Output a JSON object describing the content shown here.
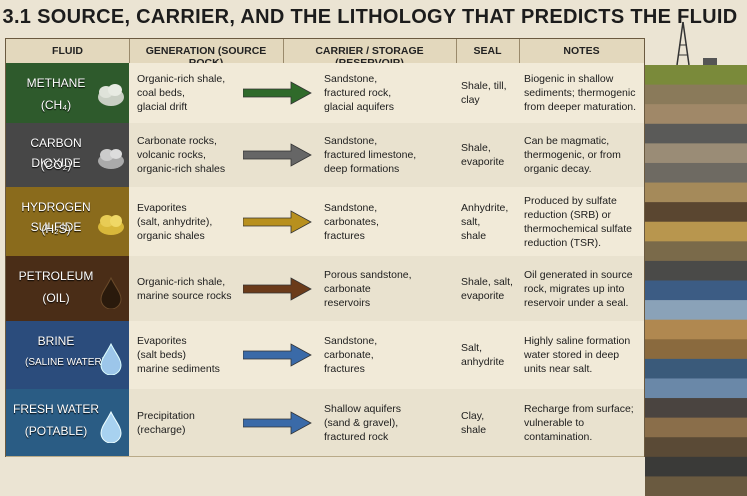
{
  "title": "3.1  SOURCE, CARRIER, AND THE LITHOLOGY THAT PREDICTS THE FLUID",
  "table": {
    "headers": [
      "FLUID",
      "GENERATION (SOURCE ROCK)",
      "CARRIER / STORAGE (RESERVOIR)",
      "SEAL",
      "NOTES"
    ],
    "rows": [
      {
        "fluid": [
          "METHANE",
          "(CH₄)"
        ],
        "generation": [
          "Organic-rich shale,",
          "coal beds,",
          "glacial drift"
        ],
        "carrier": [
          "Sandstone,",
          "fractured rock,",
          "glacial aquifers"
        ],
        "seal": [
          "Shale, till,",
          "clay"
        ],
        "notes": [
          "Biogenic in shallow",
          "sediments; thermogenic",
          "from deeper maturation."
        ]
      },
      {
        "fluid": [
          "CARBON DIOXIDE",
          "(CO₂)"
        ],
        "generation": [
          "Carbonate rocks,",
          "volcanic rocks,",
          "organic-rich shales"
        ],
        "carrier": [
          "Sandstone,",
          "fractured limestone,",
          "deep formations"
        ],
        "seal": [
          "Shale,",
          "evaporite"
        ],
        "notes": [
          "Can be magmatic,",
          "thermogenic, or from",
          "organic decay."
        ]
      },
      {
        "fluid": [
          "HYDROGEN SULFIDE",
          "(H₂S)"
        ],
        "generation": [
          "Evaporites",
          "(salt, anhydrite),",
          "organic shales"
        ],
        "carrier": [
          "Sandstone,",
          "carbonates,",
          "fractures"
        ],
        "seal": [
          "Anhydrite,",
          "salt,",
          "shale"
        ],
        "notes": [
          "Produced by sulfate",
          "reduction (SRB) or",
          "thermochemical sulfate",
          "reduction (TSR)."
        ]
      },
      {
        "fluid": [
          "PETROLEUM",
          "(OIL)"
        ],
        "generation": [
          "Organic-rich shale,",
          "marine source rocks"
        ],
        "carrier": [
          "Porous sandstone,",
          "carbonate",
          "reservoirs"
        ],
        "seal": [
          "Shale, salt,",
          "evaporite"
        ],
        "notes": [
          "Oil generated in source",
          "rock, migrates up into",
          "reservoir under a seal."
        ]
      },
      {
        "fluid": [
          "BRINE",
          "(SALINE WATER)"
        ],
        "generation": [
          "Evaporites",
          "(salt beds)",
          "marine sediments"
        ],
        "carrier": [
          "Sandstone,",
          "carbonate,",
          "fractures"
        ],
        "seal": [
          "Salt,",
          "anhydrite"
        ],
        "notes": [
          "Highly saline formation",
          "water stored in deep",
          "units near salt."
        ]
      },
      {
        "fluid": [
          "FRESH WATER",
          "(POTABLE)"
        ],
        "generation": [
          "Precipitation",
          "(recharge)"
        ],
        "carrier": [
          "Shallow aquifers",
          "(sand & gravel),",
          "fractured rock"
        ],
        "seal": [
          "Clay,",
          "shale"
        ],
        "notes": [
          "Recharge from surface;",
          "vulnerable to",
          "contamination."
        ]
      }
    ]
  }
}
